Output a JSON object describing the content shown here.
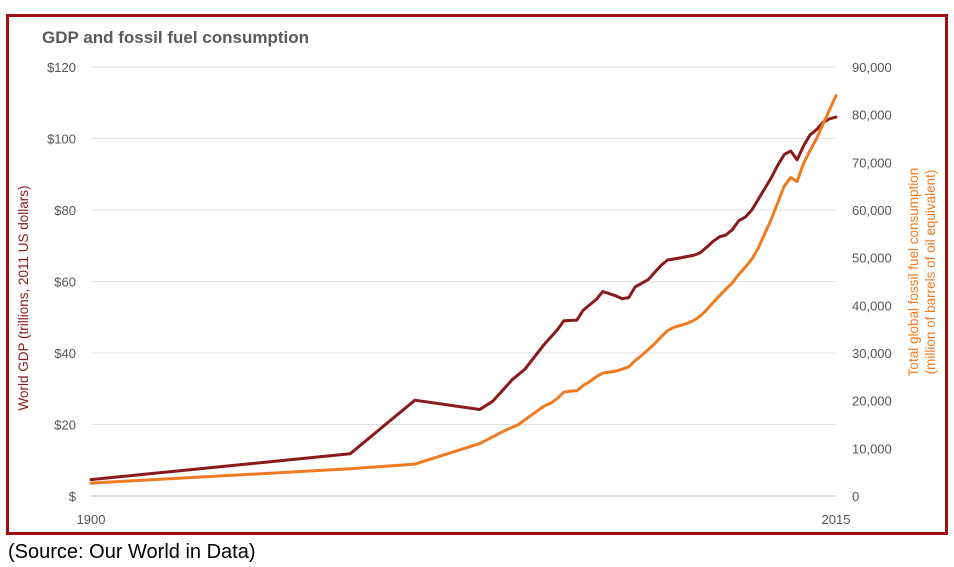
{
  "chart_data": {
    "type": "line",
    "title": "GDP and fossil fuel consumption",
    "xlabel": "",
    "x_ticks": [
      "1900",
      "2015"
    ],
    "xlim": [
      1900,
      2015
    ],
    "y_left": {
      "label": "World GDP (trillions, 2011 US dollars)",
      "ticks": [
        "$",
        "$20",
        "$40",
        "$60",
        "$80",
        "$100",
        "$120"
      ],
      "lim": [
        0,
        120
      ],
      "color": "#8b1a1a"
    },
    "y_right": {
      "label_line1": "Total global fossil fuel consumption",
      "label_line2": "(million of barrels of oil equivalent)",
      "ticks": [
        "0",
        "10,000",
        "20,000",
        "30,000",
        "40,000",
        "50,000",
        "60,000",
        "70,000",
        "80,000",
        "90,000"
      ],
      "lim": [
        0,
        90000
      ],
      "color": "#f07b22"
    },
    "series": [
      {
        "axis": "left",
        "color": "#8b1a1a",
        "points": [
          [
            1900,
            4.6
          ],
          [
            1940,
            11.8
          ],
          [
            1950,
            26.8
          ],
          [
            1960,
            24.2
          ],
          [
            1962,
            26.5
          ],
          [
            1965,
            32.5
          ],
          [
            1967,
            35.5
          ],
          [
            1970,
            42.5
          ],
          [
            1972,
            46.5
          ],
          [
            1973,
            49
          ],
          [
            1975,
            49.2
          ],
          [
            1976,
            52
          ],
          [
            1978,
            55
          ],
          [
            1979,
            57.2
          ],
          [
            1981,
            56
          ],
          [
            1982,
            55.2
          ],
          [
            1983,
            55.5
          ],
          [
            1984,
            58.5
          ],
          [
            1986,
            60.5
          ],
          [
            1988,
            64.5
          ],
          [
            1989,
            66
          ],
          [
            1990,
            66.3
          ],
          [
            1991,
            66.6
          ],
          [
            1992,
            67
          ],
          [
            1993,
            67.3
          ],
          [
            1994,
            68
          ],
          [
            1995,
            69.5
          ],
          [
            1996,
            71.2
          ],
          [
            1997,
            72.5
          ],
          [
            1998,
            73
          ],
          [
            1999,
            74.5
          ],
          [
            2000,
            77
          ],
          [
            2001,
            78
          ],
          [
            2002,
            80
          ],
          [
            2003,
            83
          ],
          [
            2004,
            86
          ],
          [
            2005,
            89
          ],
          [
            2006,
            92.5
          ],
          [
            2007,
            95.5
          ],
          [
            2008,
            96.5
          ],
          [
            2009,
            94
          ],
          [
            2010,
            98
          ],
          [
            2011,
            101
          ],
          [
            2012,
            102.5
          ],
          [
            2013,
            104.5
          ],
          [
            2014,
            105.5
          ],
          [
            2015,
            106
          ]
        ]
      },
      {
        "axis": "right",
        "color": "#f07b22",
        "points": [
          [
            1900,
            2700
          ],
          [
            1940,
            5700
          ],
          [
            1950,
            6700
          ],
          [
            1960,
            11000
          ],
          [
            1964,
            13800
          ],
          [
            1966,
            15000
          ],
          [
            1968,
            17000
          ],
          [
            1970,
            18900
          ],
          [
            1971,
            19500
          ],
          [
            1972,
            20500
          ],
          [
            1973,
            21800
          ],
          [
            1974,
            22000
          ],
          [
            1975,
            22100
          ],
          [
            1976,
            23200
          ],
          [
            1977,
            24000
          ],
          [
            1978,
            25000
          ],
          [
            1979,
            25800
          ],
          [
            1980,
            26000
          ],
          [
            1981,
            26200
          ],
          [
            1982,
            26600
          ],
          [
            1983,
            27100
          ],
          [
            1984,
            28400
          ],
          [
            1985,
            29500
          ],
          [
            1986,
            30700
          ],
          [
            1987,
            31900
          ],
          [
            1988,
            33400
          ],
          [
            1989,
            34700
          ],
          [
            1990,
            35400
          ],
          [
            1991,
            35800
          ],
          [
            1992,
            36200
          ],
          [
            1993,
            36800
          ],
          [
            1994,
            37700
          ],
          [
            1995,
            39000
          ],
          [
            1996,
            40500
          ],
          [
            1997,
            42000
          ],
          [
            1998,
            43400
          ],
          [
            1999,
            44700
          ],
          [
            2000,
            46500
          ],
          [
            2001,
            48000
          ],
          [
            2002,
            49700
          ],
          [
            2003,
            52000
          ],
          [
            2004,
            55000
          ],
          [
            2005,
            58000
          ],
          [
            2006,
            61500
          ],
          [
            2007,
            65000
          ],
          [
            2008,
            66800
          ],
          [
            2009,
            66000
          ],
          [
            2010,
            69800
          ],
          [
            2011,
            72500
          ],
          [
            2012,
            75000
          ],
          [
            2013,
            78000
          ],
          [
            2014,
            81000
          ],
          [
            2015,
            84000
          ]
        ]
      }
    ],
    "grid": true
  },
  "caption": "(Source: Our World in Data)"
}
